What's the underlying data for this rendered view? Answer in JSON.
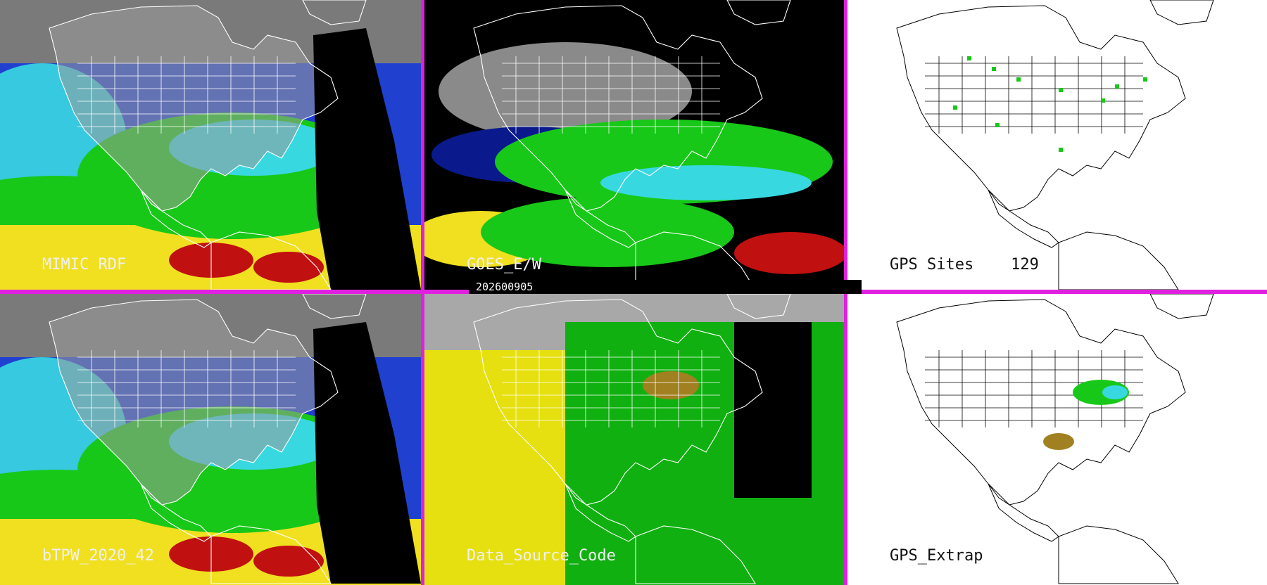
{
  "timestamp": "202600905",
  "panels": [
    {
      "label": "MIMIC RDF",
      "theme": "satellite"
    },
    {
      "label": "GOES_E/W",
      "theme": "goes"
    },
    {
      "label": "GPS Sites    129",
      "theme": "gps"
    },
    {
      "label": "bTPW_2020_42",
      "theme": "satellite"
    },
    {
      "label": "Data_Source_Code",
      "theme": "source"
    },
    {
      "label": "GPS_Extrap",
      "theme": "extrap"
    }
  ],
  "colors": {
    "border": "#e020e0",
    "ocean_dark": "#0a1a8c",
    "ocean_blue": "#2040d0",
    "cyan": "#38d8e0",
    "green": "#18c818",
    "yellow": "#f0e020",
    "olive": "#a08020",
    "red": "#c01010",
    "land_gray": "#9a9a9a",
    "source_gray": "#a8a8a8",
    "source_yellow": "#e6e010",
    "source_green": "#10b010"
  },
  "icons": [
    "coastline-map"
  ]
}
